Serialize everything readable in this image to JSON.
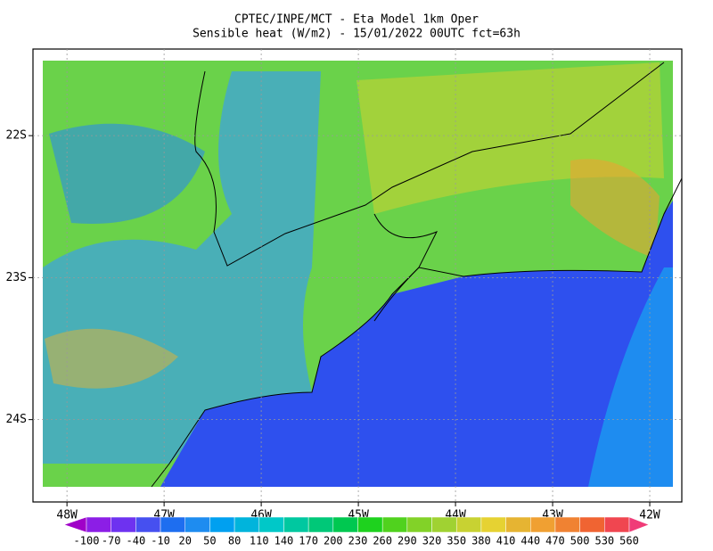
{
  "title": [
    "CPTEC/INPE/MCT -  Eta Model 1km Oper",
    "Sensible heat (W/m2) - 15/01/2022 00UTC fct=63h"
  ],
  "lon_ticks": [
    {
      "value": -48,
      "label": "48W"
    },
    {
      "value": -47,
      "label": "47W"
    },
    {
      "value": -46,
      "label": "46W"
    },
    {
      "value": -45,
      "label": "45W"
    },
    {
      "value": -44,
      "label": "44W"
    },
    {
      "value": -43,
      "label": "43W"
    },
    {
      "value": -42,
      "label": "42W"
    }
  ],
  "lat_ticks": [
    {
      "value": -22,
      "label": "22S"
    },
    {
      "value": -23,
      "label": "23S"
    },
    {
      "value": -24,
      "label": "24S"
    }
  ],
  "lonlim": [
    -48.35,
    -41.67
  ],
  "latlim": [
    -21.39,
    -24.58
  ],
  "colorbar": {
    "labels": [
      -100,
      -70,
      -40,
      -10,
      20,
      50,
      80,
      110,
      140,
      170,
      200,
      230,
      260,
      290,
      320,
      350,
      380,
      410,
      440,
      470,
      500,
      530,
      560
    ],
    "colors": [
      "#a000c8",
      "#8c1ee6",
      "#6e32f0",
      "#4650f0",
      "#1e6ef0",
      "#1e8cf0",
      "#00a0f0",
      "#00b4dc",
      "#00c8c8",
      "#00c8a0",
      "#00c878",
      "#00c850",
      "#1ed21e",
      "#50d21e",
      "#82d228",
      "#a0d232",
      "#c8d232",
      "#e6d232",
      "#e6b432",
      "#f0a032",
      "#f08232",
      "#f06432",
      "#f04650",
      "#f03c78"
    ]
  }
}
